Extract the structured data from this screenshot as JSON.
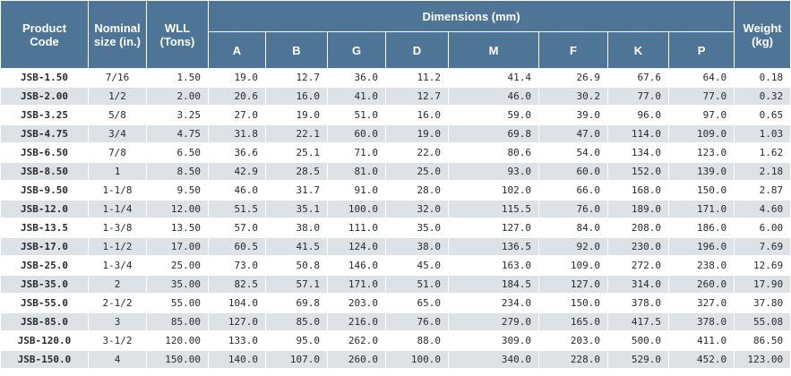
{
  "headers": {
    "product_code": "Product Code",
    "nominal_size": "Nominal size (in.)",
    "wll": "WLL (Tons)",
    "dimensions": "Dimensions (mm)",
    "weight": "Weight (kg)",
    "dims": [
      "A",
      "B",
      "G",
      "D",
      "M",
      "F",
      "K",
      "P"
    ]
  },
  "rows": [
    [
      "JSB-1.50",
      "7/16",
      "1.50",
      "19.0",
      "12.7",
      "36.0",
      "11.2",
      "41.4",
      "26.9",
      "67.6",
      "64.0",
      "0.18"
    ],
    [
      "JSB-2.00",
      "1/2",
      "2.00",
      "20.6",
      "16.0",
      "41.0",
      "12.7",
      "46.0",
      "30.2",
      "77.0",
      "77.0",
      "0.32"
    ],
    [
      "JSB-3.25",
      "5/8",
      "3.25",
      "27.0",
      "19.0",
      "51.0",
      "16.0",
      "59.0",
      "39.0",
      "96.0",
      "97.0",
      "0.65"
    ],
    [
      "JSB-4.75",
      "3/4",
      "4.75",
      "31.8",
      "22.1",
      "60.0",
      "19.0",
      "69.8",
      "47.0",
      "114.0",
      "109.0",
      "1.03"
    ],
    [
      "JSB-6.50",
      "7/8",
      "6.50",
      "36.6",
      "25.1",
      "71.0",
      "22.0",
      "80.6",
      "54.0",
      "134.0",
      "123.0",
      "1.62"
    ],
    [
      "JSB-8.50",
      "1",
      "8.50",
      "42.9",
      "28.5",
      "81.0",
      "25.0",
      "93.0",
      "60.0",
      "152.0",
      "139.0",
      "2.18"
    ],
    [
      "JSB-9.50",
      "1-1/8",
      "9.50",
      "46.0",
      "31.7",
      "91.0",
      "28.0",
      "102.0",
      "66.0",
      "168.0",
      "150.0",
      "2.87"
    ],
    [
      "JSB-12.0",
      "1-1/4",
      "12.00",
      "51.5",
      "35.1",
      "100.0",
      "32.0",
      "115.5",
      "76.0",
      "189.0",
      "171.0",
      "4.60"
    ],
    [
      "JSB-13.5",
      "1-3/8",
      "13.50",
      "57.0",
      "38.0",
      "111.0",
      "35.0",
      "127.0",
      "84.0",
      "208.0",
      "186.0",
      "6.00"
    ],
    [
      "JSB-17.0",
      "1-1/2",
      "17.00",
      "60.5",
      "41.5",
      "124.0",
      "38.0",
      "136.5",
      "92.0",
      "230.0",
      "196.0",
      "7.69"
    ],
    [
      "JSB-25.0",
      "1-3/4",
      "25.00",
      "73.0",
      "50.8",
      "146.0",
      "45.0",
      "163.0",
      "109.0",
      "272.0",
      "238.0",
      "12.69"
    ],
    [
      "JSB-35.0",
      "2",
      "35.00",
      "82.5",
      "57.1",
      "171.0",
      "51.0",
      "184.5",
      "127.0",
      "314.0",
      "260.0",
      "17.90"
    ],
    [
      "JSB-55.0",
      "2-1/2",
      "55.00",
      "104.0",
      "69.8",
      "203.0",
      "65.0",
      "234.0",
      "150.0",
      "378.0",
      "327.0",
      "37.80"
    ],
    [
      "JSB-85.0",
      "3",
      "85.00",
      "127.0",
      "85.0",
      "216.0",
      "76.0",
      "279.0",
      "165.0",
      "417.5",
      "378.0",
      "55.08"
    ],
    [
      "JSB-120.0",
      "3-1/2",
      "120.00",
      "133.0",
      "95.0",
      "262.0",
      "88.0",
      "309.0",
      "203.0",
      "500.0",
      "411.0",
      "86.50"
    ],
    [
      "JSB-150.0",
      "4",
      "150.00",
      "140.0",
      "107.0",
      "260.0",
      "100.0",
      "340.0",
      "228.0",
      "529.0",
      "452.0",
      "123.00"
    ]
  ]
}
